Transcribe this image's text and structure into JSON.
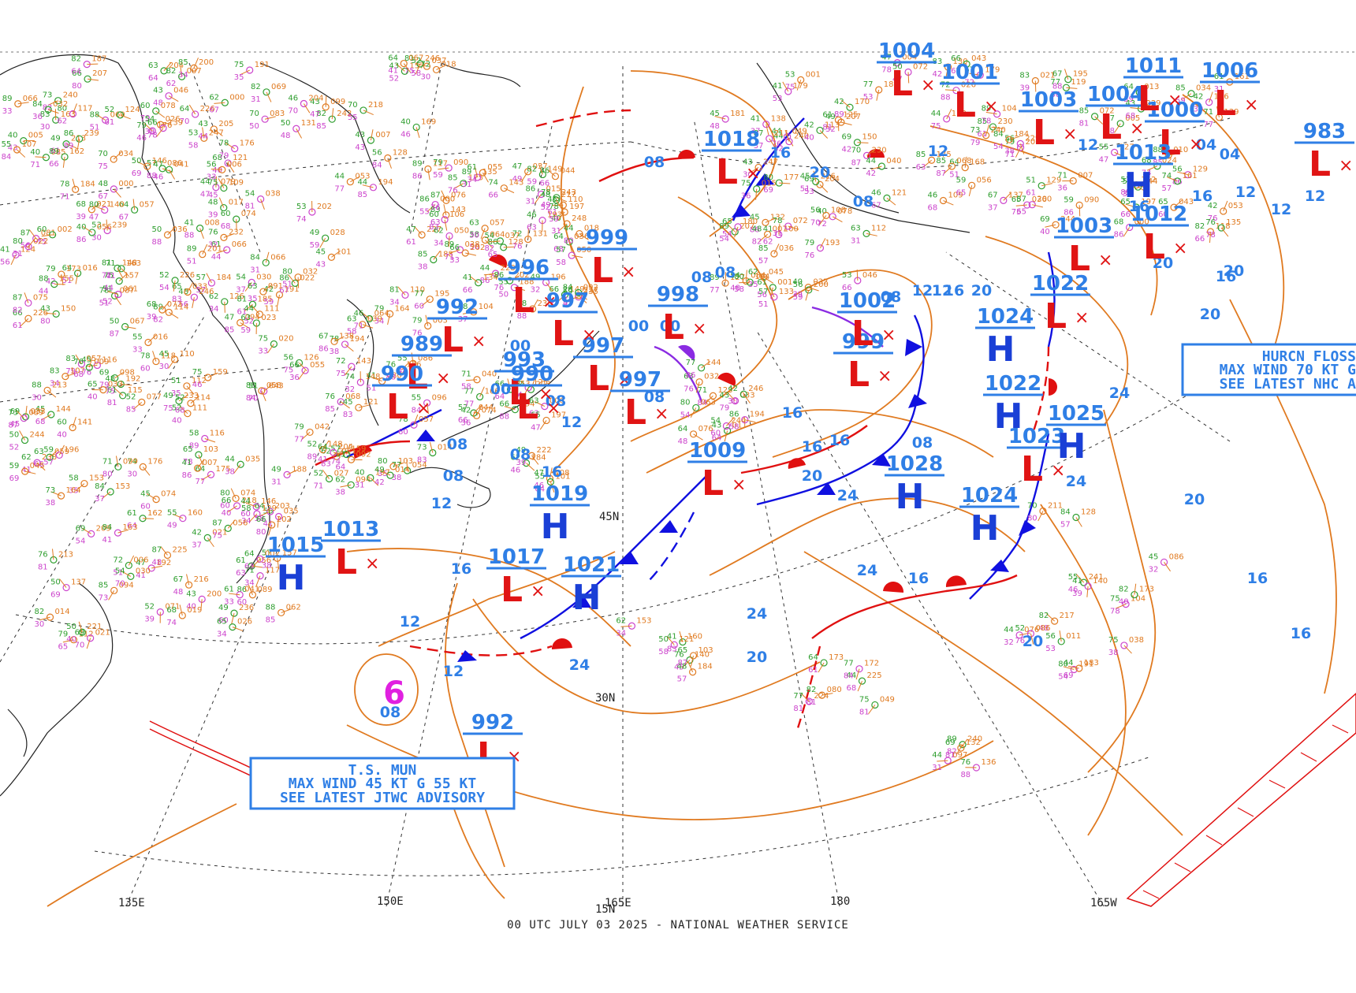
{
  "footer": "00 UTC JULY 03 2025 - NATIONAL WEATHER SERVICE",
  "colors": {
    "isobar": "#e07a20",
    "cold_front": "#1010e0",
    "warm_front": "#e01010",
    "occluded": "#8a2be2",
    "high": "#1a3fd6",
    "low": "#e01414",
    "label_blue": "#2f7fe6",
    "grid": "#333333",
    "coast": "#222222"
  },
  "grid_labels": [
    {
      "id": "lon-150e",
      "text": "150E"
    },
    {
      "id": "lon-165e",
      "text": "165E"
    },
    {
      "id": "lon-180",
      "text": "180"
    },
    {
      "id": "lon-165w",
      "text": "165W"
    },
    {
      "id": "lon-135e",
      "text": "135E"
    },
    {
      "id": "lat-30n",
      "text": "30N"
    },
    {
      "id": "lat-15n",
      "text": "15N"
    },
    {
      "id": "lat-45n",
      "text": "45N"
    }
  ],
  "advisories": [
    {
      "id": "ts-mun",
      "lines": [
        "T.S. MUN",
        "MAX WIND 45 KT G 55 KT",
        "SEE LATEST JTWC ADVISORY"
      ]
    },
    {
      "id": "hurcn-flossie",
      "lines": [
        "HURCN FLOSS",
        "MAX WIND 70 KT G",
        "SEE LATEST NHC A"
      ]
    }
  ],
  "pressure_centers": [
    {
      "type": "H",
      "value": "1015"
    },
    {
      "type": "L",
      "value": "1013"
    },
    {
      "type": "L",
      "value": "1017"
    },
    {
      "type": "H",
      "value": "1019"
    },
    {
      "type": "H",
      "value": "1021"
    },
    {
      "type": "L",
      "value": "1009"
    },
    {
      "type": "H",
      "value": "1028"
    },
    {
      "type": "H",
      "value": "1024"
    },
    {
      "type": "L",
      "value": "1023"
    },
    {
      "type": "H",
      "value": "1025"
    },
    {
      "type": "L",
      "value": "1022"
    },
    {
      "type": "H",
      "value": "1024"
    },
    {
      "type": "H",
      "value": "1022"
    },
    {
      "type": "L",
      "value": "999"
    },
    {
      "type": "L",
      "value": "1002"
    },
    {
      "type": "L",
      "value": "997"
    },
    {
      "type": "L",
      "value": "997"
    },
    {
      "type": "L",
      "value": "993"
    },
    {
      "type": "L",
      "value": "990"
    },
    {
      "type": "L",
      "value": "989"
    },
    {
      "type": "L",
      "value": "992"
    },
    {
      "type": "L",
      "value": "990"
    },
    {
      "type": "L",
      "value": "999"
    },
    {
      "type": "L",
      "value": "1004"
    },
    {
      "type": "L",
      "value": "1001"
    },
    {
      "type": "L",
      "value": "1003"
    },
    {
      "type": "L",
      "value": "1004"
    },
    {
      "type": "L",
      "value": "1000"
    },
    {
      "type": "H",
      "value": "1013"
    },
    {
      "type": "L",
      "value": "1012"
    },
    {
      "type": "L",
      "value": "1003"
    },
    {
      "type": "L",
      "value": "983"
    },
    {
      "type": "L",
      "value": "1018"
    },
    {
      "type": "L",
      "value": "1011"
    },
    {
      "type": "L",
      "value": "1006"
    },
    {
      "type": "L",
      "value": "998"
    },
    {
      "type": "L",
      "value": "996"
    },
    {
      "type": "L",
      "value": "997"
    },
    {
      "type": "L",
      "value": "992"
    }
  ],
  "isobar_labels": [
    "12",
    "16",
    "20",
    "24",
    "08",
    "04",
    "00",
    "96"
  ]
}
